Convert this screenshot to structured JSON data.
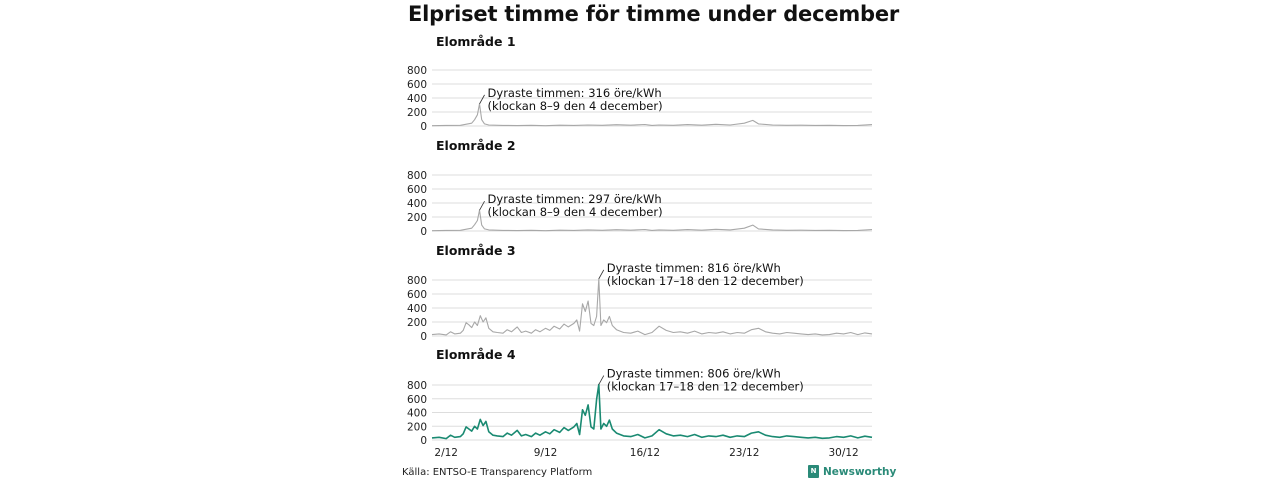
{
  "title": "Elpriset timme för timme under december",
  "source": "Källa: ENTSO-E Transparency Platform",
  "brand": {
    "name": "Newsworthy",
    "icon": "newsworthy-logo-icon"
  },
  "colors": {
    "grey_series": "#a8a8a8",
    "highlight_series": "#1a8a72",
    "grid": "#dddddd",
    "text": "#111111"
  },
  "chart_data": [
    {
      "type": "line",
      "title": "Elområde 1",
      "ylim": [
        0,
        800
      ],
      "yticks": [
        0,
        200,
        400,
        600,
        800
      ],
      "xlim": [
        1,
        32
      ],
      "xticks": [
        {
          "day": 2,
          "label": "2/12"
        },
        {
          "day": 9,
          "label": "9/12"
        },
        {
          "day": 16,
          "label": "16/12"
        },
        {
          "day": 23,
          "label": "23/12"
        },
        {
          "day": 30,
          "label": "30/12"
        }
      ],
      "show_x_labels": false,
      "color": "grey",
      "annotation": {
        "day": 4.35,
        "value": 316,
        "line1": "Dyraste timmen: 316 öre/kWh",
        "line2": "(klockan 8–9 den 4 december)"
      },
      "series": [
        {
          "x": [
            1,
            2,
            3,
            3.8,
            4.0,
            4.2,
            4.35,
            4.5,
            4.7,
            5,
            6,
            7,
            8,
            9,
            10,
            11,
            12,
            13,
            14,
            15,
            16,
            16.5,
            17,
            18,
            19,
            20,
            21,
            22,
            23,
            23.6,
            24,
            25,
            26,
            27,
            28,
            29,
            30,
            31,
            32
          ],
          "y": [
            5,
            8,
            10,
            40,
            90,
            160,
            316,
            90,
            30,
            15,
            8,
            6,
            10,
            5,
            12,
            8,
            15,
            10,
            18,
            12,
            22,
            8,
            15,
            10,
            20,
            12,
            25,
            15,
            40,
            80,
            30,
            15,
            10,
            12,
            8,
            10,
            6,
            8,
            20
          ]
        }
      ]
    },
    {
      "type": "line",
      "title": "Elområde 2",
      "ylim": [
        0,
        800
      ],
      "yticks": [
        0,
        200,
        400,
        600,
        800
      ],
      "xlim": [
        1,
        32
      ],
      "xticks": [
        {
          "day": 2,
          "label": "2/12"
        },
        {
          "day": 9,
          "label": "9/12"
        },
        {
          "day": 16,
          "label": "16/12"
        },
        {
          "day": 23,
          "label": "23/12"
        },
        {
          "day": 30,
          "label": "30/12"
        }
      ],
      "show_x_labels": false,
      "color": "grey",
      "annotation": {
        "day": 4.35,
        "value": 297,
        "line1": "Dyraste timmen: 297 öre/kWh",
        "line2": "(klockan 8–9 den 4 december)"
      },
      "series": [
        {
          "x": [
            1,
            2,
            3,
            3.8,
            4.0,
            4.2,
            4.35,
            4.5,
            4.7,
            5,
            6,
            7,
            8,
            9,
            10,
            11,
            12,
            13,
            14,
            15,
            16,
            16.5,
            17,
            18,
            19,
            20,
            21,
            22,
            23,
            23.6,
            24,
            25,
            26,
            27,
            28,
            29,
            30,
            31,
            32
          ],
          "y": [
            5,
            8,
            10,
            40,
            90,
            150,
            297,
            85,
            30,
            15,
            8,
            6,
            10,
            5,
            12,
            8,
            15,
            10,
            18,
            12,
            22,
            8,
            15,
            10,
            20,
            12,
            25,
            15,
            40,
            85,
            30,
            15,
            10,
            12,
            8,
            10,
            6,
            8,
            20
          ]
        }
      ]
    },
    {
      "type": "line",
      "title": "Elområde 3",
      "ylim": [
        0,
        800
      ],
      "yticks": [
        0,
        200,
        400,
        600,
        800
      ],
      "xlim": [
        1,
        32
      ],
      "xticks": [
        {
          "day": 2,
          "label": "2/12"
        },
        {
          "day": 9,
          "label": "9/12"
        },
        {
          "day": 16,
          "label": "16/12"
        },
        {
          "day": 23,
          "label": "23/12"
        },
        {
          "day": 30,
          "label": "30/12"
        }
      ],
      "show_x_labels": false,
      "color": "grey",
      "annotation": {
        "day": 12.75,
        "value": 816,
        "line1": "Dyraste timmen: 816 öre/kWh",
        "line2": "(klockan 17–18 den 12 december)"
      },
      "series": [
        {
          "x": [
            1,
            1.5,
            2,
            2.3,
            2.6,
            3,
            3.2,
            3.4,
            3.6,
            3.8,
            4.0,
            4.2,
            4.4,
            4.6,
            4.8,
            5,
            5.3,
            5.6,
            6,
            6.3,
            6.6,
            7,
            7.3,
            7.6,
            8,
            8.3,
            8.6,
            9,
            9.3,
            9.6,
            10,
            10.3,
            10.6,
            11,
            11.2,
            11.4,
            11.6,
            11.8,
            12.0,
            12.2,
            12.4,
            12.6,
            12.75,
            12.9,
            13.1,
            13.3,
            13.5,
            13.7,
            14,
            14.5,
            15,
            15.5,
            16,
            16.5,
            17,
            17.5,
            18,
            18.5,
            19,
            19.5,
            20,
            20.5,
            21,
            21.5,
            22,
            22.5,
            23,
            23.5,
            24,
            24.5,
            25,
            25.5,
            26,
            26.5,
            27,
            27.5,
            28,
            28.5,
            29,
            29.5,
            30,
            30.5,
            31,
            31.5,
            32
          ],
          "y": [
            20,
            30,
            15,
            60,
            30,
            40,
            80,
            190,
            160,
            120,
            200,
            150,
            290,
            200,
            260,
            110,
            60,
            50,
            40,
            90,
            60,
            130,
            50,
            70,
            40,
            90,
            60,
            110,
            80,
            140,
            100,
            170,
            130,
            180,
            230,
            70,
            460,
            350,
            500,
            180,
            150,
            280,
            816,
            150,
            230,
            190,
            280,
            150,
            90,
            50,
            40,
            70,
            20,
            50,
            140,
            80,
            50,
            60,
            40,
            70,
            30,
            50,
            40,
            60,
            30,
            50,
            40,
            90,
            110,
            60,
            40,
            30,
            50,
            40,
            30,
            20,
            30,
            15,
            20,
            40,
            30,
            50,
            20,
            45,
            30
          ]
        }
      ]
    },
    {
      "type": "line",
      "title": "Elområde 4",
      "ylim": [
        0,
        800
      ],
      "yticks": [
        0,
        200,
        400,
        600,
        800
      ],
      "xlim": [
        1,
        32
      ],
      "xticks": [
        {
          "day": 2,
          "label": "2/12"
        },
        {
          "day": 9,
          "label": "9/12"
        },
        {
          "day": 16,
          "label": "16/12"
        },
        {
          "day": 23,
          "label": "23/12"
        },
        {
          "day": 30,
          "label": "30/12"
        }
      ],
      "show_x_labels": true,
      "color": "highlight",
      "annotation": {
        "day": 12.75,
        "value": 806,
        "line1": "Dyraste timmen: 806 öre/kWh",
        "line2": "(klockan 17–18 den 12 december)"
      },
      "series": [
        {
          "x": [
            1,
            1.5,
            2,
            2.3,
            2.6,
            3,
            3.2,
            3.4,
            3.6,
            3.8,
            4.0,
            4.2,
            4.4,
            4.6,
            4.8,
            5,
            5.3,
            5.6,
            6,
            6.3,
            6.6,
            7,
            7.3,
            7.6,
            8,
            8.3,
            8.6,
            9,
            9.3,
            9.6,
            10,
            10.3,
            10.6,
            11,
            11.2,
            11.4,
            11.6,
            11.8,
            12.0,
            12.2,
            12.4,
            12.6,
            12.75,
            12.9,
            13.1,
            13.3,
            13.5,
            13.7,
            14,
            14.5,
            15,
            15.5,
            16,
            16.5,
            17,
            17.5,
            18,
            18.5,
            19,
            19.5,
            20,
            20.5,
            21,
            21.5,
            22,
            22.5,
            23,
            23.5,
            24,
            24.5,
            25,
            25.5,
            26,
            26.5,
            27,
            27.5,
            28,
            28.5,
            29,
            29.5,
            30,
            30.5,
            31,
            31.5,
            32
          ],
          "y": [
            30,
            40,
            20,
            70,
            40,
            50,
            90,
            190,
            160,
            130,
            200,
            160,
            300,
            210,
            270,
            120,
            70,
            60,
            50,
            100,
            70,
            140,
            60,
            80,
            50,
            100,
            70,
            120,
            90,
            150,
            110,
            180,
            140,
            190,
            240,
            80,
            440,
            360,
            510,
            190,
            160,
            590,
            806,
            160,
            240,
            200,
            290,
            160,
            100,
            60,
            50,
            80,
            30,
            60,
            150,
            90,
            60,
            70,
            50,
            80,
            40,
            60,
            50,
            70,
            40,
            60,
            50,
            100,
            120,
            70,
            50,
            40,
            60,
            50,
            40,
            30,
            40,
            25,
            30,
            50,
            40,
            60,
            30,
            55,
            40
          ]
        }
      ]
    }
  ]
}
